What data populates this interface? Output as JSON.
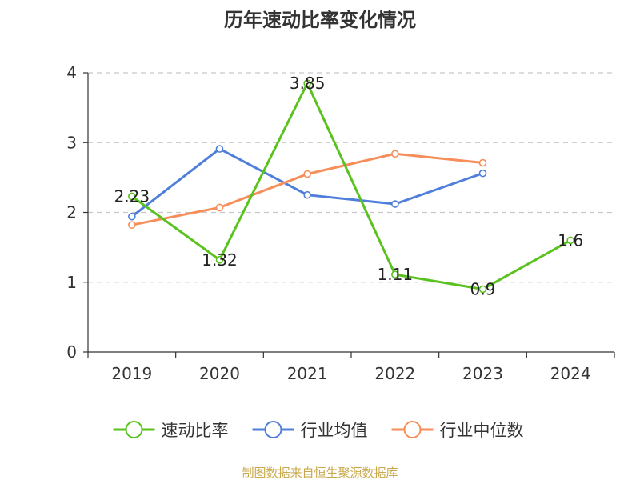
{
  "chart_data": {
    "type": "line",
    "title": "历年速动比率变化情况",
    "categories": [
      "2019",
      "2020",
      "2021",
      "2022",
      "2023",
      "2024"
    ],
    "ylim": [
      0,
      4
    ],
    "yticks": [
      0,
      1,
      2,
      3,
      4
    ],
    "grid": true,
    "legend_position": "bottom",
    "series": [
      {
        "name": "速动比率",
        "color": "#5ac21f",
        "values": [
          2.23,
          1.32,
          3.85,
          1.11,
          0.9,
          1.6
        ],
        "data_labels": [
          "2.23",
          "1.32",
          "3.85",
          "1.11",
          "0.9",
          "1.6"
        ]
      },
      {
        "name": "行业均值",
        "color": "#4f7fda",
        "values": [
          1.94,
          2.91,
          2.25,
          2.12,
          2.56,
          null
        ]
      },
      {
        "name": "行业中位数",
        "color": "#f78e5a",
        "values": [
          1.82,
          2.07,
          2.55,
          2.84,
          2.71,
          null
        ]
      }
    ]
  },
  "footer": {
    "source": "制图数据来自恒生聚源数据库"
  }
}
